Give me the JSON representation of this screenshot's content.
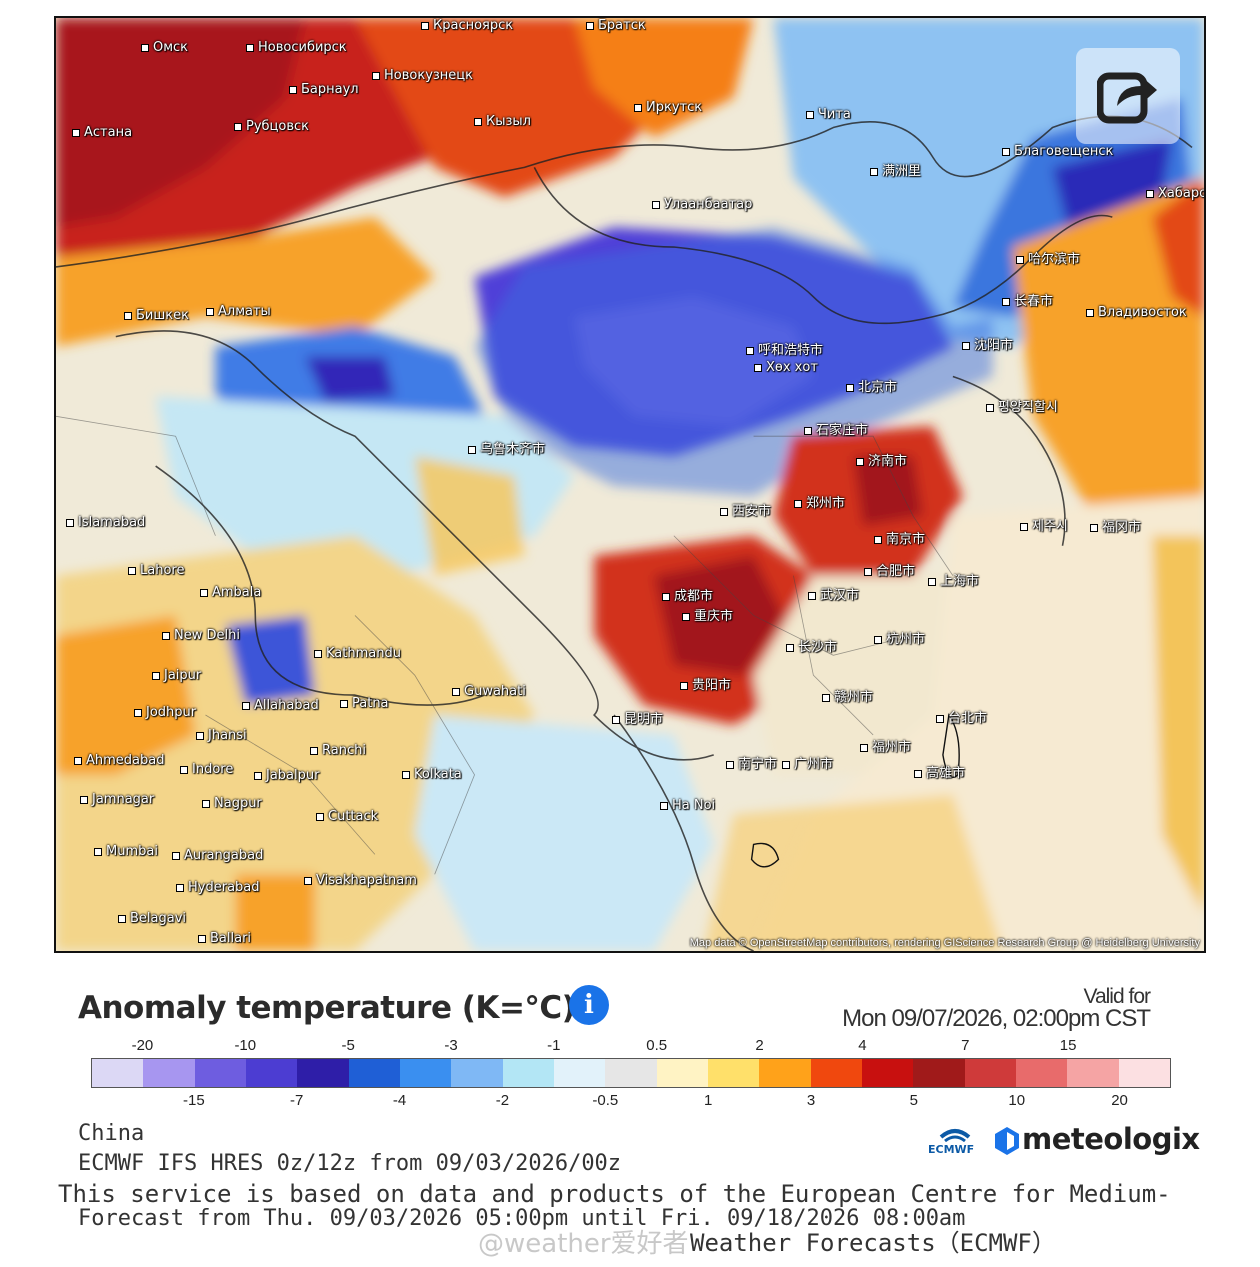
{
  "map": {
    "attribution": "Map data © OpenStreetMap contributors, rendering GIScience Research Group @ Heidelberg University",
    "cities": [
      {
        "name": "Омск"
      },
      {
        "name": "Новосибирск"
      },
      {
        "name": "Красноярск"
      },
      {
        "name": "Братск"
      },
      {
        "name": "Новокузнецк"
      },
      {
        "name": "Барнаул"
      },
      {
        "name": "Иркутск"
      },
      {
        "name": "Кызыл"
      },
      {
        "name": "Астана"
      },
      {
        "name": "Рубцовск"
      },
      {
        "name": "Чита"
      },
      {
        "name": "Улаанбаатар"
      },
      {
        "name": "满洲里"
      },
      {
        "name": "Благовещенск"
      },
      {
        "name": "Хабаровск"
      },
      {
        "name": "哈尔滨市"
      },
      {
        "name": "长春市"
      },
      {
        "name": "Владивосток"
      },
      {
        "name": "沈阳市"
      },
      {
        "name": "呼和浩特市"
      },
      {
        "name": "北京市"
      },
      {
        "name": "평양직할시"
      },
      {
        "name": "Бишкек"
      },
      {
        "name": "Алматы"
      },
      {
        "name": "乌鲁木齐市"
      },
      {
        "name": "石家庄市"
      },
      {
        "name": "济南市"
      },
      {
        "name": "郑州市"
      },
      {
        "name": "西安市"
      },
      {
        "name": "Islamabad"
      },
      {
        "name": "Lahore"
      },
      {
        "name": "Ambala"
      },
      {
        "name": "New Delhi"
      },
      {
        "name": "成都市"
      },
      {
        "name": "重庆市"
      },
      {
        "name": "武汉市"
      },
      {
        "name": "上海市"
      },
      {
        "name": "长沙市"
      },
      {
        "name": "贵阳市"
      },
      {
        "name": "昆明市"
      },
      {
        "name": "Kathmandu"
      },
      {
        "name": "Jaipur"
      },
      {
        "name": "Guwahati"
      },
      {
        "name": "Allahabad"
      },
      {
        "name": "Patna"
      },
      {
        "name": "Jodhpur"
      },
      {
        "name": "Jhansi"
      },
      {
        "name": "Ahmedabad"
      },
      {
        "name": "Indore"
      },
      {
        "name": "Jabalpur"
      },
      {
        "name": "Ranchi"
      },
      {
        "name": "Kolkata"
      },
      {
        "name": "Jamnagar"
      },
      {
        "name": "Nagpur"
      },
      {
        "name": "Cuttack"
      },
      {
        "name": "Mumbai"
      },
      {
        "name": "Aurangabad"
      },
      {
        "name": "Hyderabad"
      },
      {
        "name": "Visakhapatnam"
      },
      {
        "name": "Belagavi"
      },
      {
        "name": "Ballari"
      },
      {
        "name": "Ha Noi"
      },
      {
        "name": "广州市"
      },
      {
        "name": "台北市"
      },
      {
        "name": "高雄市"
      },
      {
        "name": "福州市"
      },
      {
        "name": "南宁市"
      },
      {
        "name": "Хөх хот"
      },
      {
        "name": "赣州市"
      },
      {
        "name": "合肥市"
      },
      {
        "name": "南京市"
      },
      {
        "name": "杭州市"
      },
      {
        "name": "제주시"
      },
      {
        "name": "福冈市"
      }
    ]
  },
  "header": {
    "title": "Anomaly temperature (K=°C)",
    "info_icon": "info-icon",
    "valid_label": "Valid for",
    "valid_date": "Mon 09/07/2026, 02:00pm CST",
    "share_icon": "share-icon"
  },
  "legend": {
    "colors": [
      "#dcd8f5",
      "#a796f0",
      "#6e5de0",
      "#4c3dd2",
      "#2e1ea8",
      "#1f5fd6",
      "#3a8ff0",
      "#7fb8f5",
      "#b3e6f5",
      "#e2f2fa",
      "#e6e6e6",
      "#fff3c4",
      "#ffe06a",
      "#ffa21a",
      "#f0480e",
      "#c8100f",
      "#a01a1a",
      "#cf3a3a",
      "#e86b6b",
      "#f5a4a4",
      "#fce0e2"
    ],
    "top_ticks": [
      "-20",
      "-10",
      "-5",
      "-3",
      "-1",
      "0.5",
      "2",
      "4",
      "7",
      "15"
    ],
    "bottom_ticks": [
      "-15",
      "-7",
      "-4",
      "-2",
      "-0.5",
      "1",
      "3",
      "5",
      "10",
      "20"
    ]
  },
  "footer": {
    "region": "China",
    "model": "ECMWF IFS HRES 0z/12z from 09/03/2026/00z",
    "service": "This service is based on data and products of the European Centre for Medium-",
    "forecast": "Forecast from Thu. 09/03/2026 05:00pm until Fri. 09/18/2026 08:00am",
    "service2": "Weather Forecasts（ECMWF）",
    "watermark": "@weather爱好者",
    "ecmwf_label": "ECMWF",
    "brand": "meteologix"
  }
}
